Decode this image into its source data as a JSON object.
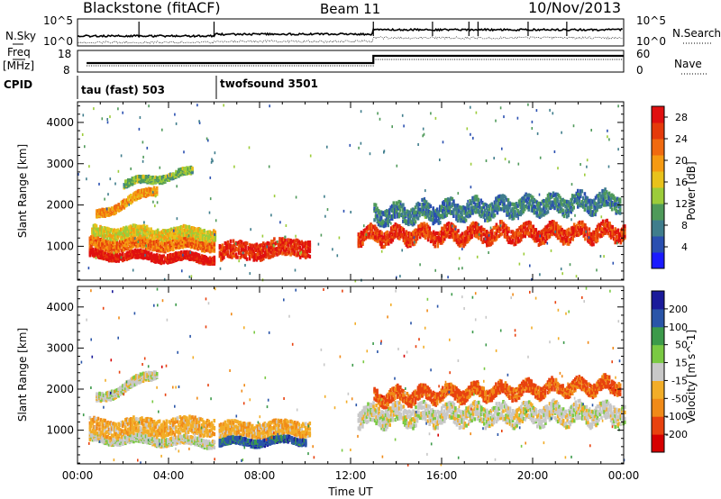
{
  "header": {
    "title_left": "Blackstone (fitACF)",
    "title_center": "Beam 11",
    "title_right": "10/Nov/2013"
  },
  "noise_panel": {
    "left_label": "N.Sky",
    "right_label": "N.Search",
    "left_ticks": [
      "10^5",
      "10^0"
    ],
    "right_ticks": [
      "10^5",
      "10^0"
    ]
  },
  "freq_panel": {
    "left_label_top": "Freq",
    "left_label_bottom": "[MHz]",
    "right_label": "Nave",
    "left_ticks": [
      "18",
      "8"
    ],
    "right_ticks": [
      "60",
      "0"
    ]
  },
  "cpid": {
    "label": "CPID",
    "segments": [
      {
        "name": "tau (fast) 503"
      },
      {
        "name": "twofsound 3501"
      }
    ]
  },
  "chart_data": [
    {
      "type": "heatmap",
      "title": "",
      "xlabel": "Time UT",
      "ylabel": "Slant Range [km]",
      "x_range_hours": [
        0,
        24
      ],
      "xticks": [
        "00:00",
        "04:00",
        "08:00",
        "12:00",
        "16:00",
        "20:00",
        "00:00"
      ],
      "ylim": [
        180,
        4500
      ],
      "yticks": [
        "1000",
        "2000",
        "3000",
        "4000"
      ],
      "colorbar": {
        "label": "Power [dB]",
        "range": [
          0,
          30
        ],
        "ticks": [
          "4",
          "8",
          "12",
          "16",
          "20",
          "24",
          "28"
        ]
      },
      "bands": [
        {
          "t_start": 0.5,
          "t_end": 6.0,
          "r_start": 800,
          "r_end": 700,
          "width": 180,
          "value": 29
        },
        {
          "t_start": 0.5,
          "t_end": 6.0,
          "r_start": 1050,
          "r_end": 1050,
          "width": 250,
          "value": 22
        },
        {
          "t_start": 0.6,
          "t_end": 6.0,
          "r_start": 1350,
          "r_end": 1300,
          "width": 250,
          "value": 16
        },
        {
          "t_start": 0.8,
          "t_end": 3.5,
          "r_start": 1750,
          "r_end": 2400,
          "width": 180,
          "value": 20
        },
        {
          "t_start": 2.0,
          "t_end": 5.0,
          "r_start": 2500,
          "r_end": 2800,
          "width": 150,
          "value": 12
        },
        {
          "t_start": 6.2,
          "t_end": 10.2,
          "r_start": 850,
          "r_end": 1000,
          "width": 400,
          "value": 27
        },
        {
          "t_start": 12.3,
          "t_end": 24.0,
          "r_start": 1250,
          "r_end": 1350,
          "width": 350,
          "value": 26
        },
        {
          "t_start": 13.0,
          "t_end": 23.8,
          "r_start": 1750,
          "r_end": 2100,
          "width": 400,
          "value": 8
        }
      ]
    },
    {
      "type": "heatmap",
      "title": "",
      "xlabel": "Time UT",
      "ylabel": "Slant Range [km]",
      "x_range_hours": [
        0,
        24
      ],
      "xticks": [
        "00:00",
        "04:00",
        "08:00",
        "12:00",
        "16:00",
        "20:00",
        "00:00"
      ],
      "ylim": [
        180,
        4500
      ],
      "yticks": [
        "1000",
        "2000",
        "3000",
        "4000"
      ],
      "colorbar": {
        "label": "Velocity [m s^-1]",
        "range": [
          -250,
          250
        ],
        "ticks": [
          "200",
          "100",
          "50",
          "15",
          "-15",
          "-50",
          "-100",
          "-200"
        ]
      },
      "bands": [
        {
          "t_start": 0.5,
          "t_end": 6.0,
          "r_start": 800,
          "r_end": 700,
          "width": 180,
          "value": 0
        },
        {
          "t_start": 0.5,
          "t_end": 6.0,
          "r_start": 1050,
          "r_end": 1100,
          "width": 400,
          "value": -60
        },
        {
          "t_start": 0.8,
          "t_end": 3.5,
          "r_start": 1750,
          "r_end": 2400,
          "width": 200,
          "value": 0
        },
        {
          "t_start": 6.2,
          "t_end": 10.2,
          "r_start": 1000,
          "r_end": 1050,
          "width": 350,
          "value": -60
        },
        {
          "t_start": 6.2,
          "t_end": 10.0,
          "r_start": 700,
          "r_end": 750,
          "width": 150,
          "value": 160
        },
        {
          "t_start": 12.3,
          "t_end": 24.0,
          "r_start": 1350,
          "r_end": 1400,
          "width": 450,
          "value": 0
        },
        {
          "t_start": 13.0,
          "t_end": 23.8,
          "r_start": 1800,
          "r_end": 2100,
          "width": 300,
          "value": -150
        }
      ]
    }
  ]
}
